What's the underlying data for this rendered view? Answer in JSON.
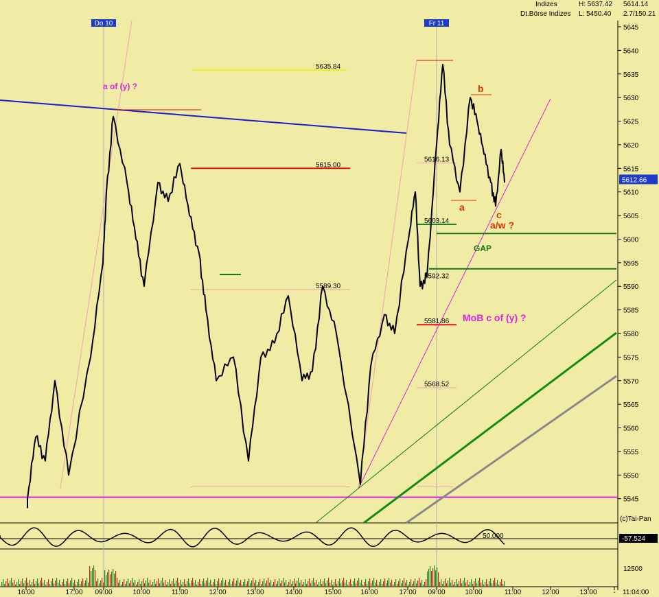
{
  "header": {
    "market": "Indizes",
    "exchange": "Dt.Börse Indizes",
    "high_label": "H: 5637.42",
    "low_label": "L: 5450.40",
    "last_price": "5614.14",
    "change": "2.7/150.21"
  },
  "day_labels": [
    {
      "label": "Do 10",
      "time": "09:00 d1"
    },
    {
      "label": "Fr 11",
      "time": "09:00 d2"
    }
  ],
  "credit": "(c)Tai-Pan",
  "current_price_tag": "5612.66",
  "oscillator": {
    "value_tag": "-57.524",
    "level_label": "50.000"
  },
  "volume_scale_label": "12500",
  "bottom_right_time": "11:04:00",
  "colors": {
    "background": "#f0eca6",
    "price_line": "#000000",
    "trend_blue": "#1c1cc8",
    "level_red": "#dd1111",
    "level_green": "#117711",
    "magenta": "#dd22dd",
    "wave_orange": "#dd3300",
    "pink": "#f2a0b0",
    "gray": "#888888"
  },
  "annotations": {
    "a_of_y": "a of (y) ?",
    "wave_b": "b",
    "wave_a": "a",
    "wave_c": "c",
    "a_w": "a/w ?",
    "gap": "GAP",
    "mob": "MoB c of (y) ?"
  },
  "chart_data": {
    "type": "line",
    "title": "",
    "xlabel": "",
    "ylabel": "",
    "x_ticks": [
      "16:00",
      "17:00",
      "09:00",
      "10:00",
      "11:00",
      "12:00",
      "13:00",
      "14:00",
      "15:00",
      "16:00",
      "17:00",
      "09:00",
      "10:00",
      "11:00",
      "12:00",
      "13:00",
      "-"
    ],
    "y_ticks": [
      5545,
      5550,
      5555,
      5560,
      5565,
      5570,
      5575,
      5580,
      5585,
      5590,
      5595,
      5600,
      5605,
      5610,
      5615,
      5620,
      5625,
      5630,
      5635,
      5640,
      5645
    ],
    "ylim": [
      5543,
      5648
    ],
    "grid": false,
    "levels": [
      {
        "label": "5635.84",
        "value": 5635.84,
        "color": "yellow"
      },
      {
        "label": "5615.00",
        "value": 5615.0,
        "color": "red"
      },
      {
        "label": "5589.30",
        "value": 5589.3,
        "color": "pink"
      },
      {
        "label": "5616.13",
        "value": 5616.13,
        "color": "pink"
      },
      {
        "label": "5603.14",
        "value": 5603.14,
        "color": "green"
      },
      {
        "label": "5592.32",
        "value": 5592.32,
        "color": "green"
      },
      {
        "label": "5581.86",
        "value": 5581.86,
        "color": "red"
      },
      {
        "label": "5568.52",
        "value": 5568.52,
        "color": "pink"
      }
    ],
    "series": [
      {
        "x": [
          "15:40",
          "16:00",
          "16:20",
          "16:40",
          "17:00",
          "17:20",
          "09:00",
          "09:05",
          "09:15",
          "09:30",
          "09:45",
          "10:00",
          "10:20",
          "10:40",
          "11:00",
          "11:20",
          "11:40",
          "12:00",
          "12:20",
          "12:40",
          "13:00",
          "13:20",
          "13:40",
          "14:00",
          "14:20",
          "14:40",
          "15:00",
          "15:20",
          "15:30",
          "15:45",
          "16:00",
          "16:20",
          "16:40",
          "17:00",
          "17:20",
          "17:30",
          "09:00",
          "09:10",
          "09:20",
          "09:35",
          "09:50",
          "10:00",
          "10:10",
          "10:25",
          "10:35",
          "10:45",
          "10:50"
        ],
        "values": [
          5545,
          5558,
          5553,
          5570,
          5550,
          5575,
          5595,
          5610,
          5626,
          5612,
          5600,
          5590,
          5612,
          5608,
          5616,
          5605,
          5597,
          5585,
          5570,
          5575,
          5553,
          5575,
          5578,
          5588,
          5570,
          5572,
          5590,
          5580,
          5548,
          5573,
          5584,
          5580,
          5600,
          5610,
          5590,
          5592,
          5620,
          5637,
          5620,
          5610,
          5630,
          5625,
          5618,
          5612,
          5607,
          5619,
          5612
        ]
      }
    ]
  }
}
